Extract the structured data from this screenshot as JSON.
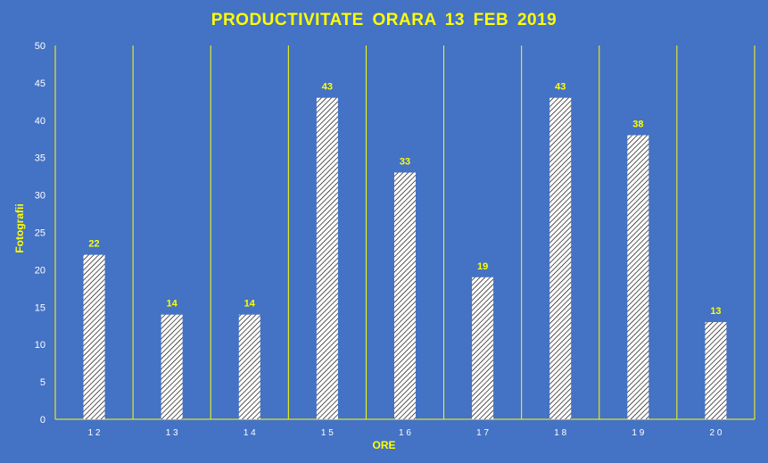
{
  "chart_data": {
    "type": "bar",
    "title": "PRODUCTIVITATE  ORARA 13 FEB 2019",
    "xlabel": "ORE",
    "ylabel": "Fotografii",
    "categories": [
      "1 2",
      "1 3",
      "1 4",
      "1 5",
      "1 6",
      "1 7",
      "1 8",
      "1 9",
      "2 0"
    ],
    "values": [
      22,
      14,
      14,
      43,
      33,
      19,
      43,
      38,
      13
    ],
    "ylim": [
      0,
      50
    ],
    "yticks": [
      0,
      5,
      10,
      15,
      20,
      25,
      30,
      35,
      40,
      45,
      50
    ],
    "data_labels": true,
    "grid": "vertical",
    "legend": "none",
    "colors": {
      "background": "#4472C4",
      "text": "#FFFF00",
      "bar_fill": "#FFFFFF",
      "bar_hatch": "#000000",
      "gridline": "#FFFF00",
      "tick_label": "#FFFFFF"
    }
  }
}
